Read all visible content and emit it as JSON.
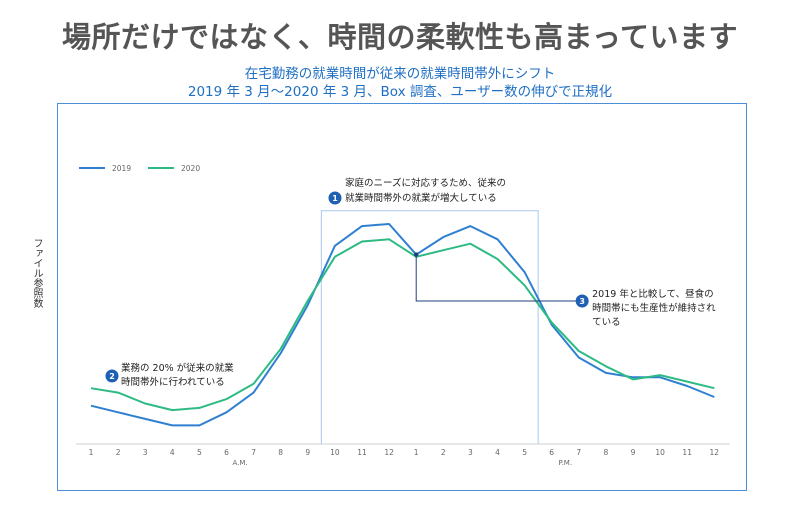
{
  "page": {
    "title": "場所だけではなく、時間の柔軟性も高まっています",
    "subtitle_1": "在宅勤務の就業時間が従来の就業時間帯外にシフト",
    "subtitle_2": "2019 年 3 月〜2020 年 3 月、Box 調査、ユーザー数の伸びで正規化"
  },
  "chart_data": {
    "type": "line",
    "title": "",
    "ylabel": "ファイル参照数",
    "xlabel": "",
    "x_ticks": [
      "1",
      "2",
      "3",
      "4",
      "5",
      "6",
      "7",
      "8",
      "9",
      "10",
      "11",
      "12",
      "1",
      "2",
      "3",
      "4",
      "5",
      "6",
      "7",
      "8",
      "9",
      "10",
      "11",
      "12"
    ],
    "period_labels": [
      {
        "label": "A.M.",
        "at_index": 5.5
      },
      {
        "label": "P.M.",
        "at_index": 17.5
      }
    ],
    "ylim": [
      0,
      100
    ],
    "grid": false,
    "legend": "top-left",
    "series": [
      {
        "name": "2019",
        "color": "#2f80d1",
        "values": [
          12,
          9,
          6,
          3,
          3,
          9,
          18,
          36,
          58,
          85,
          94,
          95,
          81,
          89,
          94,
          88,
          73,
          49,
          34,
          27,
          25,
          25,
          21,
          16
        ]
      },
      {
        "name": "2020",
        "color": "#2dbb83",
        "values": [
          20,
          18,
          13,
          10,
          11,
          15,
          22,
          38,
          60,
          80,
          87,
          88,
          80,
          83,
          86,
          79,
          67,
          50,
          37,
          30,
          24,
          26,
          23,
          20
        ]
      }
    ],
    "annotations": [
      {
        "number": "1",
        "lines": [
          "家庭のニーズに対応するため、従来の",
          "就業時間帯外の就業が増大している"
        ]
      },
      {
        "number": "2",
        "lines": [
          "業務の 20% が従来の就業",
          "時間帯外に行われている"
        ]
      },
      {
        "number": "3",
        "lines": [
          "2019 年と比較して、昼食の",
          "時間帯にも生産性が維持され",
          "ている"
        ]
      }
    ],
    "colors": {
      "accent": "#1f6fc4",
      "frame": "#4a8fd8",
      "badge": "#1f5fb4"
    }
  }
}
